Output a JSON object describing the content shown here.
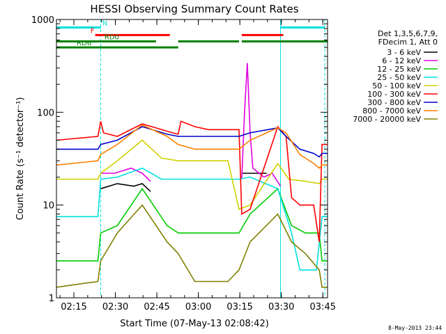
{
  "chart_data": {
    "type": "line",
    "title": "HESSI Observing Summary Count Rates",
    "xlabel": "Start Time (07-May-13 02:08:42)",
    "ylabel": "Count Rate (s⁻¹ detector⁻¹)",
    "y_scale": "log",
    "ylim": [
      1,
      1000
    ],
    "xlim_minutes_after_start": [
      0,
      98
    ],
    "x_ticks": [
      {
        "label": "02:15",
        "min": 6.3
      },
      {
        "label": "02:30",
        "min": 21.3
      },
      {
        "label": "02:45",
        "min": 36.3
      },
      {
        "label": "03:00",
        "min": 51.3
      },
      {
        "label": "03:15",
        "min": 66.3
      },
      {
        "label": "03:30",
        "min": 81.3
      },
      {
        "label": "03:45",
        "min": 96.3
      }
    ],
    "y_ticks": [
      {
        "label": "1",
        "value": 1
      },
      {
        "label": "10",
        "value": 10
      },
      {
        "label": "100",
        "value": 100
      },
      {
        "label": "1000",
        "value": 1000
      }
    ],
    "legend_header": [
      "Det 1,3,5,6,7,9,",
      "FDecim 1, Att 0"
    ],
    "legend_position": "right",
    "series": [
      {
        "name": "3 - 6 keV",
        "color": "#000000",
        "points": [
          [
            0,
            0
          ],
          [
            15,
            0
          ],
          [
            16,
            15
          ],
          [
            22,
            17
          ],
          [
            28,
            16
          ],
          [
            31,
            17
          ],
          [
            34,
            14
          ],
          [
            38,
            0
          ],
          [
            62,
            0
          ],
          [
            66,
            0
          ],
          [
            67,
            22
          ],
          [
            76,
            22
          ],
          [
            77,
            0
          ],
          [
            98,
            0
          ]
        ]
      },
      {
        "name": "6 - 12 keV",
        "color": "#e000e0",
        "points": [
          [
            0,
            0
          ],
          [
            15,
            0
          ],
          [
            16,
            22
          ],
          [
            21,
            22
          ],
          [
            27,
            25
          ],
          [
            31,
            22
          ],
          [
            34,
            18
          ],
          [
            38,
            0
          ],
          [
            62,
            0
          ],
          [
            66,
            0
          ],
          [
            67,
            19
          ],
          [
            68,
            100
          ],
          [
            69,
            340
          ],
          [
            70,
            60
          ],
          [
            71,
            25
          ],
          [
            75,
            20
          ],
          [
            78,
            22
          ],
          [
            81,
            16
          ],
          [
            83,
            0
          ],
          [
            98,
            0
          ]
        ]
      },
      {
        "name": "12 - 25 keV",
        "color": "#00cc00",
        "points": [
          [
            0,
            2.5
          ],
          [
            15,
            2.5
          ],
          [
            16,
            5
          ],
          [
            22,
            6
          ],
          [
            31,
            15
          ],
          [
            40,
            6
          ],
          [
            44,
            5
          ],
          [
            50,
            5
          ],
          [
            62,
            5
          ],
          [
            66,
            5
          ],
          [
            70,
            8
          ],
          [
            80,
            15
          ],
          [
            85,
            6
          ],
          [
            90,
            5
          ],
          [
            95,
            5
          ],
          [
            96,
            2.5
          ],
          [
            98,
            2.5
          ]
        ]
      },
      {
        "name": "25 - 50 keV",
        "color": "#00e0e0",
        "points": [
          [
            0,
            7.5
          ],
          [
            15,
            7.5
          ],
          [
            16,
            19
          ],
          [
            22,
            20
          ],
          [
            31,
            25
          ],
          [
            38,
            19
          ],
          [
            44,
            19
          ],
          [
            50,
            19
          ],
          [
            62,
            19
          ],
          [
            66,
            19
          ],
          [
            70,
            20
          ],
          [
            80,
            15
          ],
          [
            85,
            5
          ],
          [
            88,
            2
          ],
          [
            94,
            2
          ],
          [
            96,
            7.5
          ],
          [
            98,
            7.5
          ]
        ]
      },
      {
        "name": "50 - 100 keV",
        "color": "#d0d000",
        "points": [
          [
            0,
            19
          ],
          [
            15,
            19
          ],
          [
            16,
            22
          ],
          [
            22,
            30
          ],
          [
            31,
            50
          ],
          [
            38,
            32
          ],
          [
            44,
            30
          ],
          [
            50,
            30
          ],
          [
            62,
            30
          ],
          [
            66,
            9
          ],
          [
            70,
            10
          ],
          [
            80,
            28
          ],
          [
            84,
            19
          ],
          [
            90,
            18
          ],
          [
            95,
            17
          ],
          [
            96,
            19
          ],
          [
            98,
            19
          ]
        ]
      },
      {
        "name": "100 - 300 keV",
        "color": "#ff0000",
        "points": [
          [
            0,
            50
          ],
          [
            15,
            55
          ],
          [
            16,
            80
          ],
          [
            17,
            60
          ],
          [
            22,
            55
          ],
          [
            31,
            75
          ],
          [
            42,
            60
          ],
          [
            44,
            58
          ],
          [
            45,
            80
          ],
          [
            50,
            70
          ],
          [
            55,
            65
          ],
          [
            60,
            65
          ],
          [
            66,
            65
          ],
          [
            67,
            8
          ],
          [
            70,
            9
          ],
          [
            80,
            70
          ],
          [
            83,
            55
          ],
          [
            85,
            12
          ],
          [
            88,
            10
          ],
          [
            93,
            10
          ],
          [
            95,
            4
          ],
          [
            96,
            45
          ],
          [
            98,
            45
          ]
        ]
      },
      {
        "name": "300 - 800 keV",
        "color": "#0000cc",
        "points": [
          [
            0,
            40
          ],
          [
            15,
            40
          ],
          [
            16,
            45
          ],
          [
            22,
            50
          ],
          [
            31,
            70
          ],
          [
            40,
            58
          ],
          [
            44,
            55
          ],
          [
            50,
            55
          ],
          [
            62,
            55
          ],
          [
            66,
            55
          ],
          [
            70,
            60
          ],
          [
            80,
            68
          ],
          [
            83,
            55
          ],
          [
            88,
            40
          ],
          [
            93,
            36
          ],
          [
            95,
            33
          ],
          [
            96,
            36
          ],
          [
            98,
            36
          ]
        ]
      },
      {
        "name": "800 - 7000 keV",
        "color": "#ff8000",
        "points": [
          [
            0,
            27
          ],
          [
            15,
            30
          ],
          [
            16,
            35
          ],
          [
            22,
            45
          ],
          [
            31,
            73
          ],
          [
            40,
            55
          ],
          [
            44,
            45
          ],
          [
            50,
            40
          ],
          [
            62,
            40
          ],
          [
            66,
            40
          ],
          [
            70,
            50
          ],
          [
            80,
            68
          ],
          [
            83,
            60
          ],
          [
            88,
            35
          ],
          [
            93,
            28
          ],
          [
            95,
            25
          ],
          [
            96,
            27
          ],
          [
            98,
            27
          ]
        ]
      },
      {
        "name": "7000 - 20000 keV",
        "color": "#808000",
        "points": [
          [
            0,
            1.3
          ],
          [
            15,
            1.5
          ],
          [
            16,
            2.5
          ],
          [
            22,
            5
          ],
          [
            31,
            10
          ],
          [
            40,
            4
          ],
          [
            44,
            3
          ],
          [
            50,
            1.5
          ],
          [
            62,
            1.5
          ],
          [
            66,
            2
          ],
          [
            70,
            4
          ],
          [
            80,
            8
          ],
          [
            85,
            4
          ],
          [
            90,
            3
          ],
          [
            95,
            2
          ],
          [
            96,
            1.3
          ],
          [
            98,
            1.3
          ]
        ]
      }
    ],
    "vertical_lines": [
      {
        "color": "#00e0e0",
        "style": "dashed",
        "min": 0
      },
      {
        "color": "#00e0e0",
        "style": "dashed",
        "min": 16
      },
      {
        "color": "#00e0e0",
        "style": "dashed",
        "min": 97
      },
      {
        "color": "#00e0e0",
        "style": "solid",
        "min": 81
      }
    ],
    "flag_bars": [
      {
        "label": "N",
        "color": "#00e0e0",
        "value": 820,
        "segments": [
          [
            0,
            16
          ],
          [
            81,
            97
          ]
        ],
        "label_at": 17.5
      },
      {
        "label": "F",
        "color": "#ff0000",
        "value": 680,
        "segments": [
          [
            14,
            41
          ],
          [
            67,
            82
          ]
        ],
        "label_at": 13
      },
      {
        "label": "RD0",
        "color": "#008000",
        "value": 580,
        "segments": [
          [
            0,
            36
          ],
          [
            44,
            66
          ],
          [
            67,
            98
          ]
        ],
        "label_at": 20
      },
      {
        "label": "RD6",
        "color": "#008000",
        "value": 500,
        "segments": [
          [
            0,
            16
          ],
          [
            16,
            44
          ]
        ],
        "label_at": 10
      }
    ]
  },
  "footer_timestamp": "8-May-2013 23:44"
}
